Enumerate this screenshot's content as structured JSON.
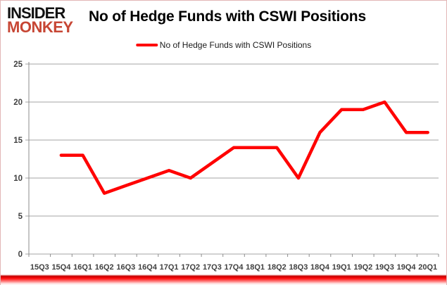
{
  "logo": {
    "line1": "INSIDER",
    "line2": "MONKEY"
  },
  "header": {
    "title": "No of Hedge Funds with CSWI Positions"
  },
  "legend": {
    "label": "No of Hedge Funds with CSWI Positions"
  },
  "chart_data": {
    "type": "line",
    "title": "No of Hedge Funds with CSWI Positions",
    "categories": [
      "15Q3",
      "15Q4",
      "16Q1",
      "16Q2",
      "16Q3",
      "16Q4",
      "17Q1",
      "17Q2",
      "17Q3",
      "17Q4",
      "18Q1",
      "18Q2",
      "18Q3",
      "18Q4",
      "19Q1",
      "19Q2",
      "19Q3",
      "19Q4",
      "20Q1"
    ],
    "series": [
      {
        "name": "No of Hedge Funds with CSWI Positions",
        "values": [
          null,
          13,
          13,
          8,
          9,
          10,
          11,
          10,
          12,
          14,
          14,
          14,
          10,
          16,
          19,
          19,
          20,
          16,
          16
        ],
        "color": "#ff0000"
      }
    ],
    "xlabel": "",
    "ylabel": "",
    "ylim": [
      0,
      25
    ],
    "ytick_interval": 5,
    "yticks": [
      0,
      5,
      10,
      15,
      20,
      25
    ],
    "grid": true,
    "legend_position": "top-center"
  },
  "colors": {
    "line": "#ff0000",
    "grid": "#a3a3a3",
    "axis": "#8c8c8c",
    "axis_text": "#3f3f3f",
    "logo_black": "#111111",
    "logo_red": "#c74634",
    "page_border": "#e2b6b6"
  }
}
